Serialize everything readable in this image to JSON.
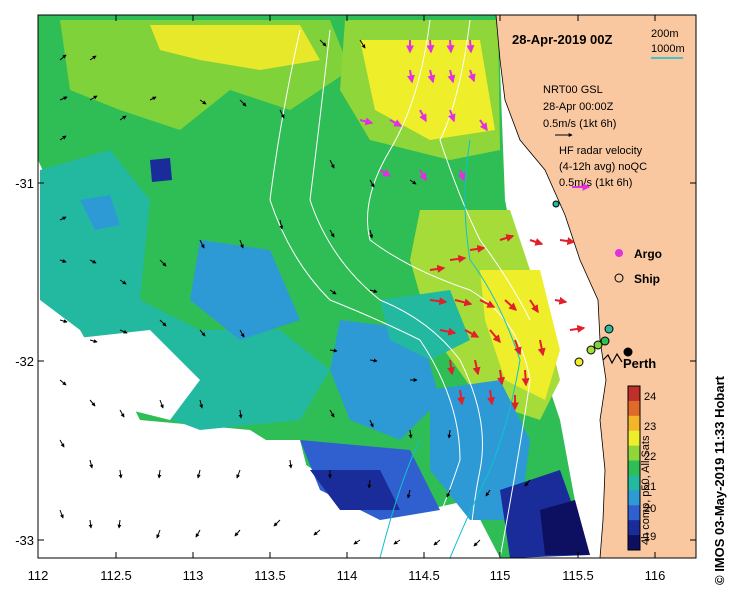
{
  "map": {
    "date_label": "28-Apr-2019 00Z",
    "scale": {
      "contour1": "200m",
      "contour2": "1000m"
    },
    "gsl_legend": {
      "line1": "NRT00 GSL",
      "line2": "28-Apr 00:00Z",
      "line3": "0.5m/s (1kt 6h)"
    },
    "hf_legend": {
      "line1": "HF radar velocity",
      "line2": "(4-12h avg) noQC",
      "line3": "0.5m/s (1kt 6h)"
    },
    "markers": {
      "argo": "Argo",
      "ship": "Ship"
    },
    "city": "Perth",
    "colorbar": {
      "title": "4h comp, p50, All Sats",
      "ticks": [
        "24",
        "23",
        "22",
        "21",
        "20",
        "19"
      ],
      "colors": [
        "#c0302a",
        "#e06a2a",
        "#f5b52a",
        "#eeee2a",
        "#8fd63a",
        "#2fbd55",
        "#23b9a0",
        "#2d9ad6",
        "#3060d0",
        "#1a2b9a",
        "#0d1060"
      ]
    },
    "x_ticks": [
      "112",
      "112.5",
      "113",
      "113.5",
      "114",
      "114.5",
      "115",
      "115.5",
      "116"
    ],
    "y_ticks": [
      "-31",
      "-32",
      "-33"
    ],
    "credit": "© IMOS 03-May-2019 11:33 Hobart",
    "colors": {
      "land": "#fac8a0",
      "ocean_bg": "#ffffff",
      "hf_arrow": "#e0202a",
      "gsl_arrow": "#000000",
      "argo": "#e030e0",
      "contour_200": "#10c0d0",
      "contour_1000": "#ffffff"
    }
  }
}
